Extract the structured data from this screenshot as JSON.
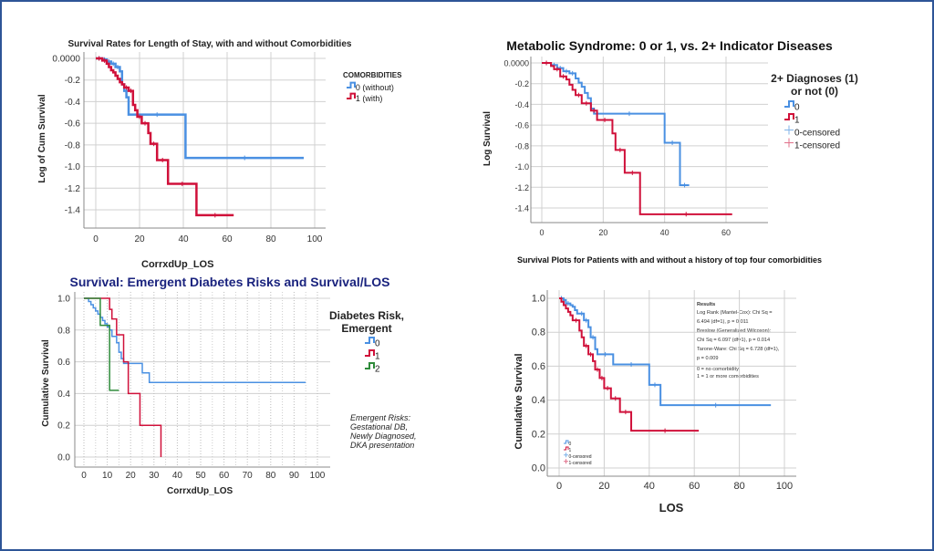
{
  "chart_data": [
    {
      "id": "c1",
      "type": "line",
      "subtype": "kaplan-meier-step",
      "title": "Survival Rates for Length of Stay, with and without Comorbidities",
      "xlabel": "CorrxdUp_LOS",
      "ylabel": "Log of Cum Survival",
      "xlim": [
        0,
        100
      ],
      "ylim": [
        -1.5,
        0
      ],
      "xticks": [
        "0",
        "20",
        "40",
        "60",
        "80",
        "100"
      ],
      "yticks": [
        "0.0000",
        "-0.2",
        "-0.4",
        "-0.6",
        "-0.8",
        "-1.0",
        "-1.2",
        "-1.4"
      ],
      "ytick_values": [
        0,
        -0.2,
        -0.4,
        -0.6,
        -0.8,
        -1.0,
        -1.2,
        -1.4
      ],
      "grid": true,
      "legend_title": "COMORBIDITIES",
      "legend_position": "right",
      "series": [
        {
          "name": "0 (without)",
          "color": "#4a90e2",
          "x": [
            0,
            3,
            5,
            7,
            9,
            11,
            12,
            13,
            14,
            15,
            41,
            95
          ],
          "y": [
            0,
            -0.01,
            -0.03,
            -0.05,
            -0.08,
            -0.12,
            -0.24,
            -0.3,
            -0.36,
            -0.52,
            -0.92,
            -0.92
          ]
        },
        {
          "name": "1 (with)",
          "color": "#d0103a",
          "x": [
            0,
            3,
            5,
            6,
            7,
            8,
            9,
            10,
            11,
            12,
            13,
            15,
            17,
            18,
            19,
            21,
            24,
            25,
            28,
            33,
            46,
            63
          ],
          "y": [
            0,
            -0.02,
            -0.05,
            -0.08,
            -0.11,
            -0.13,
            -0.16,
            -0.19,
            -0.22,
            -0.24,
            -0.27,
            -0.3,
            -0.43,
            -0.48,
            -0.54,
            -0.6,
            -0.69,
            -0.79,
            -0.94,
            -1.16,
            -1.45,
            -1.45
          ]
        }
      ]
    },
    {
      "id": "c2",
      "type": "line",
      "subtype": "kaplan-meier-step",
      "title": "Metabolic Syndrome: 0 or 1, vs. 2+ Indicator Diseases",
      "xlabel": "",
      "ylabel": "Log Survival",
      "xlim": [
        -2,
        72
      ],
      "ylim": [
        -1.58,
        0.05
      ],
      "xticks": [
        "0",
        "20",
        "40",
        "60"
      ],
      "xtick_values": [
        0,
        20,
        40,
        60
      ],
      "yticks": [
        "0.0000",
        "-0.2",
        "-0.4",
        "-0.6",
        "-0.8",
        "-1.0",
        "-1.2",
        "-1.4"
      ],
      "ytick_values": [
        0,
        -0.2,
        -0.4,
        -0.6,
        -0.8,
        -1.0,
        -1.2,
        -1.4
      ],
      "grid": true,
      "legend_title": "2+ Diagnoses (1) or not (0)",
      "legend_position": "right",
      "series": [
        {
          "name": "0",
          "color": "#4a90e2",
          "x": [
            0,
            3,
            5,
            7,
            9,
            11,
            12,
            13,
            14,
            15,
            16,
            17,
            40,
            45,
            48
          ],
          "y": [
            0,
            -0.02,
            -0.05,
            -0.08,
            -0.1,
            -0.15,
            -0.19,
            -0.23,
            -0.29,
            -0.34,
            -0.44,
            -0.49,
            -0.77,
            -1.18,
            -1.18
          ]
        },
        {
          "name": "1",
          "color": "#d0103a",
          "x": [
            0,
            3,
            4,
            6,
            8,
            9,
            10,
            11,
            13,
            16,
            18,
            23,
            24,
            27,
            32,
            62
          ],
          "y": [
            0,
            -0.03,
            -0.06,
            -0.13,
            -0.16,
            -0.21,
            -0.26,
            -0.31,
            -0.39,
            -0.46,
            -0.55,
            -0.68,
            -0.84,
            -1.06,
            -1.46,
            -1.46
          ]
        }
      ],
      "legend_extra": [
        "0-censored",
        "1-censored"
      ]
    },
    {
      "id": "c3",
      "type": "line",
      "subtype": "kaplan-meier-step",
      "title": "Survival: Emergent Diabetes Risks and Survival/LOS",
      "xlabel": "CorrxdUp_LOS",
      "ylabel": "Cumulative Survival",
      "xlim": [
        -4,
        105
      ],
      "ylim": [
        -0.05,
        1.05
      ],
      "xticks": [
        "0",
        "10",
        "20",
        "30",
        "40",
        "50",
        "60",
        "70",
        "80",
        "90",
        "100"
      ],
      "xtick_values": [
        0,
        10,
        20,
        30,
        40,
        50,
        60,
        70,
        80,
        90,
        100
      ],
      "yticks": [
        "1.0",
        "0.8",
        "0.6",
        "0.4",
        "0.2",
        "0.0"
      ],
      "ytick_values": [
        1.0,
        0.8,
        0.6,
        0.4,
        0.2,
        0.0
      ],
      "grid": true,
      "legend_title": "Diabetes Risk, Emergent",
      "legend_position": "right",
      "annotation": [
        "Emergent Risks:",
        "Gestational DB,",
        "Newly Diagnosed,",
        "DKA presentation"
      ],
      "series": [
        {
          "name": "0",
          "color": "#4a90e2",
          "x": [
            0,
            2,
            3,
            4,
            5,
            6,
            7,
            8,
            9,
            10,
            11,
            12,
            14,
            15,
            16,
            17,
            25,
            26,
            28,
            95
          ],
          "y": [
            1.0,
            0.98,
            0.96,
            0.94,
            0.92,
            0.9,
            0.88,
            0.86,
            0.84,
            0.82,
            0.8,
            0.76,
            0.72,
            0.66,
            0.62,
            0.59,
            0.53,
            0.53,
            0.47,
            0.47
          ]
        },
        {
          "name": "1",
          "color": "#d0103a",
          "x": [
            0,
            10,
            11,
            12,
            14,
            17,
            19,
            24,
            33
          ],
          "y": [
            1.0,
            1.0,
            0.93,
            0.87,
            0.77,
            0.6,
            0.4,
            0.2,
            0.0
          ]
        },
        {
          "name": "2",
          "color": "#2e8b3a",
          "x": [
            0,
            7,
            11,
            15
          ],
          "y": [
            1.0,
            0.83,
            0.42,
            0.42
          ]
        }
      ]
    },
    {
      "id": "c4",
      "type": "line",
      "subtype": "kaplan-meier-step",
      "title": "Survival Plots for Patients with and without a history of top four comorbidities",
      "xlabel": "LOS",
      "ylabel": "Cumulative Survival",
      "xlim": [
        -5,
        105
      ],
      "ylim": [
        -0.06,
        1.05
      ],
      "xticks": [
        "0",
        "20",
        "40",
        "60",
        "80",
        "100"
      ],
      "xtick_values": [
        0,
        20,
        40,
        60,
        80,
        100
      ],
      "yticks": [
        "1.0",
        "0.8",
        "0.6",
        "0.4",
        "0.2",
        "0.0"
      ],
      "ytick_values": [
        1.0,
        0.8,
        0.6,
        0.4,
        0.2,
        0.0
      ],
      "grid": true,
      "legend_position": "bottom-left",
      "legend_entries": [
        "0",
        "1",
        "0-censored",
        "1-censored"
      ],
      "results_box": [
        "Results",
        "Log Rank (Mantel-Cox): Chi Sq =",
        "6.494 (df=1), p = 0.011",
        "Breslow (Generalized Wilcoxon):",
        "Chi Sq = 6.097 (df=1), p = 0.014",
        "Tarone-Ware: Chi Sq = 6.728 (df=1),",
        "p = 0.009",
        "0 = no comorbidity",
        "1 = 1 or more comorbidities"
      ],
      "series": [
        {
          "name": "0",
          "color": "#4a90e2",
          "x": [
            0,
            2,
            3,
            5,
            6,
            7,
            8,
            9,
            11,
            13,
            14,
            16,
            17,
            24,
            40,
            45,
            94
          ],
          "y": [
            1.0,
            0.99,
            0.97,
            0.96,
            0.95,
            0.93,
            0.91,
            0.91,
            0.87,
            0.83,
            0.77,
            0.7,
            0.67,
            0.61,
            0.49,
            0.37,
            0.37
          ]
        },
        {
          "name": "1",
          "color": "#d0103a",
          "x": [
            0,
            1,
            2,
            3,
            4,
            5,
            6,
            9,
            10,
            11,
            13,
            15,
            16,
            18,
            20,
            23,
            27,
            32,
            62
          ],
          "y": [
            1.0,
            0.98,
            0.96,
            0.94,
            0.92,
            0.9,
            0.87,
            0.81,
            0.77,
            0.72,
            0.67,
            0.63,
            0.58,
            0.53,
            0.47,
            0.41,
            0.33,
            0.22,
            0.22
          ]
        }
      ]
    }
  ]
}
